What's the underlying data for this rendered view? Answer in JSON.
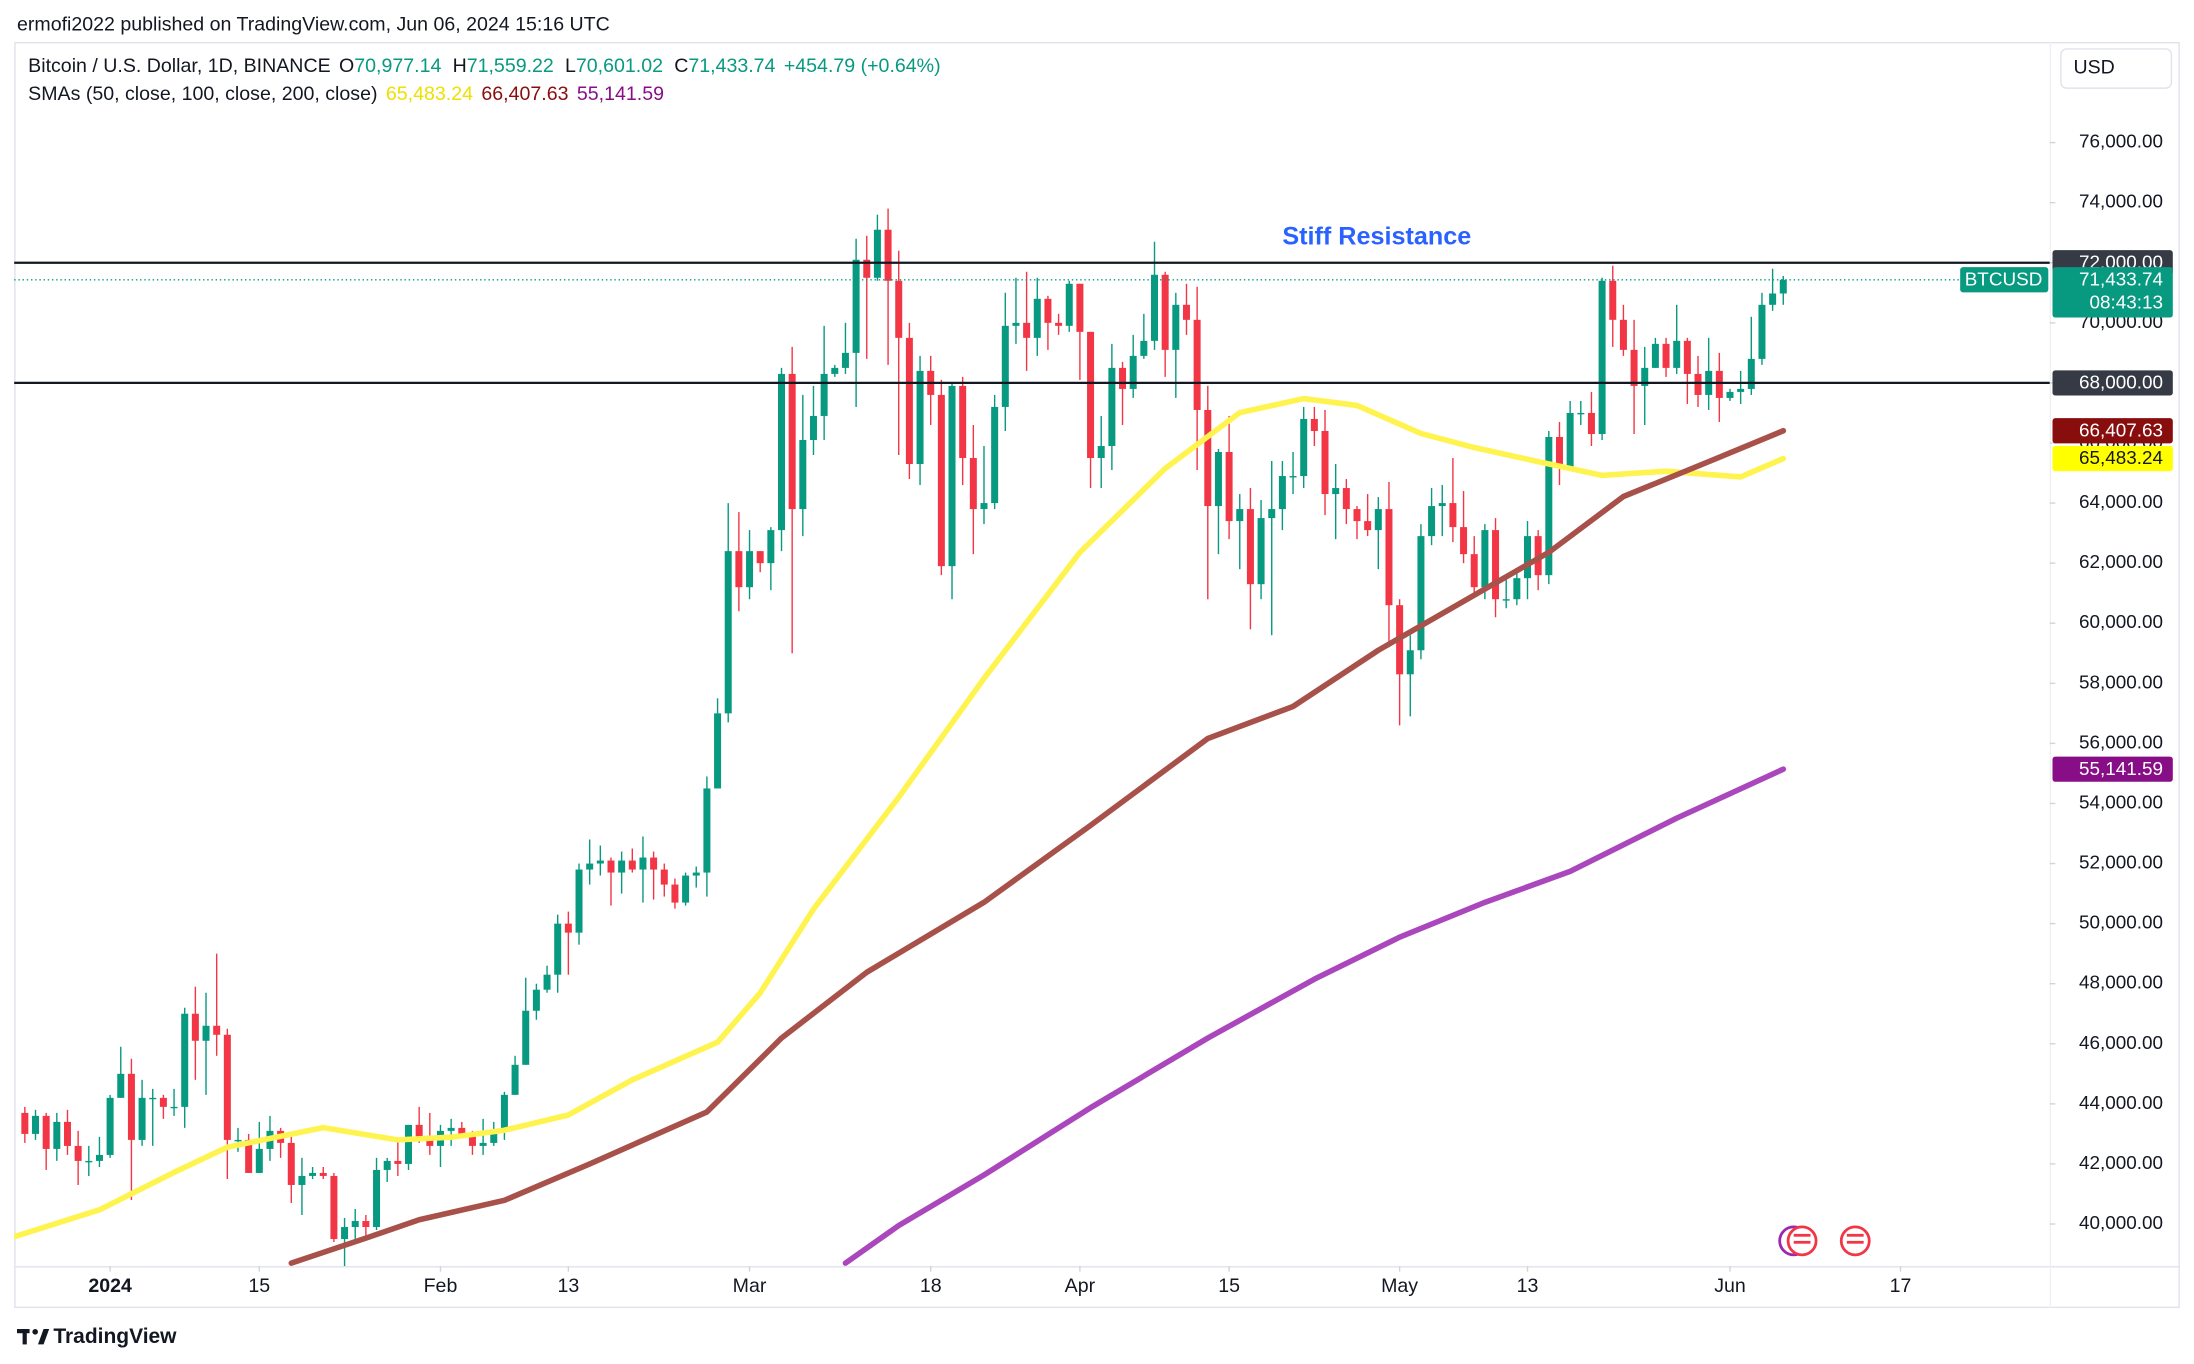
{
  "publisher": "ermofi2022 published on TradingView.com, Jun 06, 2024 15:16 UTC",
  "currency": "USD",
  "footer": "TradingView",
  "chart_data": {
    "type": "candlestick",
    "symbol": "Bitcoin / U.S. Dollar, 1D, BINANCE",
    "ohlc_legend": [
      {
        "key": "O",
        "value": "70,977.14"
      },
      {
        "key": "H",
        "value": "71,559.22"
      },
      {
        "key": "L",
        "value": "70,601.02"
      },
      {
        "key": "C",
        "value": "71,433.74"
      }
    ],
    "change": "+454.79 (+0.64%)",
    "sma_legend": "SMAs (50, close, 100, close, 200, close)",
    "annotation": "Stiff Resistance",
    "up_color": "#089981",
    "down_color": "#f23645",
    "x": [
      "2023-12-24",
      "2023-12-25",
      "2023-12-26",
      "2023-12-27",
      "2023-12-28",
      "2023-12-29",
      "2023-12-30",
      "2023-12-31",
      "2024-01-01",
      "2024-01-02",
      "2024-01-03",
      "2024-01-04",
      "2024-01-05",
      "2024-01-06",
      "2024-01-07",
      "2024-01-08",
      "2024-01-09",
      "2024-01-10",
      "2024-01-11",
      "2024-01-12",
      "2024-01-13",
      "2024-01-14",
      "2024-01-15",
      "2024-01-16",
      "2024-01-17",
      "2024-01-18",
      "2024-01-19",
      "2024-01-20",
      "2024-01-21",
      "2024-01-22",
      "2024-01-23",
      "2024-01-24",
      "2024-01-25",
      "2024-01-26",
      "2024-01-27",
      "2024-01-28",
      "2024-01-29",
      "2024-01-30",
      "2024-01-31",
      "2024-02-01",
      "2024-02-02",
      "2024-02-03",
      "2024-02-04",
      "2024-02-05",
      "2024-02-06",
      "2024-02-07",
      "2024-02-08",
      "2024-02-09",
      "2024-02-10",
      "2024-02-11",
      "2024-02-12",
      "2024-02-13",
      "2024-02-14",
      "2024-02-15",
      "2024-02-16",
      "2024-02-17",
      "2024-02-18",
      "2024-02-19",
      "2024-02-20",
      "2024-02-21",
      "2024-02-22",
      "2024-02-23",
      "2024-02-24",
      "2024-02-25",
      "2024-02-26",
      "2024-02-27",
      "2024-02-28",
      "2024-02-29",
      "2024-03-01",
      "2024-03-02",
      "2024-03-03",
      "2024-03-04",
      "2024-03-05",
      "2024-03-06",
      "2024-03-07",
      "2024-03-08",
      "2024-03-09",
      "2024-03-10",
      "2024-03-11",
      "2024-03-12",
      "2024-03-13",
      "2024-03-14",
      "2024-03-15",
      "2024-03-16",
      "2024-03-17",
      "2024-03-18",
      "2024-03-19",
      "2024-03-20",
      "2024-03-21",
      "2024-03-22",
      "2024-03-23",
      "2024-03-24",
      "2024-03-25",
      "2024-03-26",
      "2024-03-27",
      "2024-03-28",
      "2024-03-29",
      "2024-03-30",
      "2024-03-31",
      "2024-04-01",
      "2024-04-02",
      "2024-04-03",
      "2024-04-04",
      "2024-04-05",
      "2024-04-06",
      "2024-04-07",
      "2024-04-08",
      "2024-04-09",
      "2024-04-10",
      "2024-04-11",
      "2024-04-12",
      "2024-04-13",
      "2024-04-14",
      "2024-04-15",
      "2024-04-16",
      "2024-04-17",
      "2024-04-18",
      "2024-04-19",
      "2024-04-20",
      "2024-04-21",
      "2024-04-22",
      "2024-04-23",
      "2024-04-24",
      "2024-04-25",
      "2024-04-26",
      "2024-04-27",
      "2024-04-28",
      "2024-04-29",
      "2024-04-30",
      "2024-05-01",
      "2024-05-02",
      "2024-05-03",
      "2024-05-04",
      "2024-05-05",
      "2024-05-06",
      "2024-05-07",
      "2024-05-08",
      "2024-05-09",
      "2024-05-10",
      "2024-05-11",
      "2024-05-12",
      "2024-05-13",
      "2024-05-14",
      "2024-05-15",
      "2024-05-16",
      "2024-05-17",
      "2024-05-18",
      "2024-05-19",
      "2024-05-20",
      "2024-05-21",
      "2024-05-22",
      "2024-05-23",
      "2024-05-24",
      "2024-05-25",
      "2024-05-26",
      "2024-05-27",
      "2024-05-28",
      "2024-05-29",
      "2024-05-30",
      "2024-05-31",
      "2024-06-01",
      "2024-06-02",
      "2024-06-03",
      "2024-06-04",
      "2024-06-05",
      "2024-06-06"
    ],
    "open": [
      43700,
      43000,
      43600,
      42500,
      43400,
      42600,
      42100,
      42100,
      42300,
      44200,
      45000,
      42800,
      44200,
      44200,
      43900,
      43900,
      47000,
      46100,
      46600,
      46300,
      42800,
      42800,
      41700,
      42500,
      43100,
      42700,
      41300,
      41600,
      41700,
      41600,
      39500,
      39900,
      40100,
      39900,
      41800,
      42100,
      42000,
      43300,
      42900,
      42600,
      43100,
      43200,
      43000,
      42600,
      42700,
      43100,
      44300,
      45300,
      47100,
      47800,
      48300,
      50000,
      49700,
      51800,
      52000,
      52100,
      51700,
      52100,
      51800,
      52200,
      51800,
      51300,
      50700,
      51600,
      51700,
      54500,
      57000,
      62400,
      61200,
      62400,
      62000,
      63100,
      68300,
      63800,
      66100,
      66900,
      68300,
      68500,
      69000,
      72100,
      71500,
      73100,
      71400,
      69500,
      65300,
      68400,
      67600,
      61900,
      67900,
      65500,
      63800,
      64000,
      67200,
      69900,
      70000,
      69500,
      70800,
      70000,
      69900,
      71300,
      69700,
      65500,
      65900,
      68500,
      67800,
      68900,
      69400,
      71600,
      69100,
      70600,
      70100,
      67100,
      63900,
      65700,
      63400,
      63800,
      61300,
      63500,
      63800,
      64900,
      64900,
      66800,
      66400,
      64300,
      64500,
      63800,
      63400,
      63100,
      63800,
      60600,
      58300,
      59100,
      62900,
      63900,
      64000,
      63200,
      62300,
      61200,
      63100,
      60800,
      60800,
      61500,
      62900,
      61600,
      66200,
      65200,
      67000,
      67000,
      66300,
      71400,
      70100,
      69100,
      67900,
      68500,
      69300,
      68500,
      69400,
      68300,
      67600,
      68400,
      67500,
      67700,
      67800,
      68800,
      70600,
      70977.14
    ],
    "high": [
      43900,
      43800,
      43700,
      43700,
      43800,
      43100,
      42600,
      42900,
      44300,
      45900,
      45500,
      44800,
      44500,
      44300,
      44500,
      47200,
      47900,
      47700,
      49000,
      46500,
      43200,
      43000,
      43400,
      43600,
      43200,
      42900,
      42200,
      41900,
      41900,
      41700,
      40200,
      40500,
      40300,
      42200,
      42200,
      42800,
      43300,
      43900,
      43700,
      43300,
      43500,
      43400,
      43100,
      43500,
      43400,
      44400,
      45600,
      48200,
      48000,
      48600,
      50300,
      50400,
      52000,
      52800,
      52600,
      52200,
      52400,
      52500,
      52900,
      52400,
      52000,
      51500,
      51700,
      51900,
      54900,
      57500,
      64000,
      63700,
      63100,
      62400,
      63200,
      68500,
      69200,
      67600,
      67900,
      69900,
      68600,
      70000,
      72800,
      72900,
      73600,
      73800,
      72400,
      70000,
      68900,
      68900,
      68100,
      68000,
      68200,
      66600,
      65900,
      67600,
      71000,
      71500,
      71700,
      71500,
      70900,
      70300,
      71400,
      71300,
      69700,
      66900,
      69300,
      68700,
      69600,
      70300,
      72700,
      71700,
      71000,
      71300,
      71200,
      67900,
      65800,
      66900,
      64300,
      64500,
      64100,
      65400,
      65400,
      65700,
      67200,
      67200,
      67100,
      65300,
      64800,
      63900,
      64300,
      64200,
      64700,
      60800,
      59600,
      63300,
      64500,
      64600,
      65500,
      64400,
      62900,
      63300,
      63500,
      61500,
      61800,
      63400,
      63100,
      66400,
      66700,
      67400,
      67400,
      67700,
      71500,
      71900,
      70600,
      70100,
      69200,
      69500,
      69500,
      70600,
      69500,
      68900,
      69500,
      69000,
      67800,
      68400,
      70200,
      71000,
      71800,
      71559.22
    ],
    "low": [
      42700,
      42800,
      41800,
      42100,
      42300,
      41300,
      41600,
      41900,
      42200,
      44200,
      40800,
      42600,
      42600,
      43500,
      43600,
      43200,
      44800,
      44300,
      45600,
      41500,
      42400,
      41700,
      41700,
      42100,
      42200,
      40700,
      40300,
      41500,
      41500,
      39400,
      38500,
      39500,
      39500,
      39800,
      41400,
      41600,
      41800,
      42700,
      42300,
      41900,
      42600,
      42900,
      42300,
      42300,
      42600,
      42800,
      44300,
      45300,
      46800,
      47700,
      47700,
      48300,
      49300,
      51300,
      51600,
      50600,
      51000,
      51700,
      50700,
      50800,
      50900,
      50500,
      50600,
      51200,
      50900,
      54500,
      56700,
      60400,
      60800,
      61700,
      61100,
      62400,
      59000,
      62900,
      65600,
      66100,
      68200,
      68300,
      67200,
      68800,
      71400,
      68600,
      65600,
      64800,
      64600,
      66600,
      61600,
      60800,
      64600,
      62300,
      63300,
      63800,
      66400,
      69300,
      68400,
      68900,
      69100,
      69600,
      69700,
      68100,
      64500,
      64500,
      65100,
      66600,
      67500,
      68800,
      69100,
      68200,
      67500,
      69600,
      65100,
      60800,
      62300,
      62800,
      61800,
      59800,
      60800,
      59600,
      63100,
      64300,
      64500,
      65900,
      63600,
      62800,
      63300,
      62800,
      62900,
      61800,
      59200,
      56600,
      56900,
      58800,
      62600,
      62900,
      62700,
      62000,
      60900,
      60800,
      60200,
      60500,
      60600,
      60800,
      61100,
      61300,
      64600,
      65100,
      66600,
      65900,
      66100,
      69200,
      68900,
      66300,
      66600,
      68500,
      68200,
      68300,
      67300,
      67200,
      67100,
      66700,
      67400,
      67300,
      67600,
      68600,
      70400,
      70601.02
    ],
    "close": [
      43000,
      43600,
      42500,
      43400,
      42600,
      42100,
      42100,
      42300,
      44200,
      45000,
      42800,
      44200,
      44200,
      43900,
      43900,
      47000,
      46100,
      46600,
      46300,
      42800,
      42800,
      41700,
      42500,
      43100,
      42700,
      41300,
      41600,
      41700,
      41600,
      39500,
      39900,
      40100,
      39900,
      41800,
      42100,
      42000,
      43300,
      42900,
      42600,
      43100,
      43200,
      43000,
      42600,
      42700,
      43100,
      44300,
      45300,
      47100,
      47800,
      48300,
      50000,
      49700,
      51800,
      52000,
      52100,
      51700,
      52100,
      51800,
      52200,
      51800,
      51300,
      50700,
      51600,
      51700,
      54500,
      57000,
      62400,
      61200,
      62400,
      62000,
      63100,
      68300,
      63800,
      66100,
      66900,
      68300,
      68500,
      69000,
      72100,
      71500,
      73100,
      71400,
      69500,
      65300,
      68400,
      67600,
      61900,
      67900,
      65500,
      63800,
      64000,
      67200,
      69900,
      70000,
      69500,
      70800,
      70000,
      69900,
      71300,
      69700,
      65500,
      65900,
      68500,
      67800,
      68900,
      69400,
      71600,
      69100,
      70600,
      70100,
      67100,
      63900,
      65700,
      63400,
      63800,
      61300,
      63500,
      63800,
      64900,
      64900,
      66800,
      66400,
      64300,
      64500,
      63800,
      63400,
      63100,
      63800,
      60600,
      58300,
      59100,
      62900,
      63900,
      64000,
      63200,
      62300,
      61200,
      63100,
      60800,
      60800,
      61500,
      62900,
      61600,
      66200,
      65200,
      67000,
      67000,
      66300,
      71400,
      70100,
      69100,
      67900,
      68500,
      69300,
      68500,
      69400,
      68300,
      67600,
      68400,
      67500,
      67700,
      67800,
      68800,
      70600,
      70977.14,
      71433.74
    ],
    "last_price": {
      "symbol": "BTCUSD",
      "label": "71,433.74",
      "countdown": "08:43:13"
    },
    "series": [
      {
        "color": "#fff44f",
        "label_color": "#ffff00",
        "last_label": "65,483.24",
        "legend_color": "#eee000",
        "x": [
          "2023-12-23",
          "2023-12-31",
          "2024-01-07",
          "2024-01-12",
          "2024-01-21",
          "2024-01-28",
          "2024-02-02",
          "2024-02-07",
          "2024-02-13",
          "2024-02-19",
          "2024-02-27",
          "2024-03-02",
          "2024-03-07",
          "2024-03-15",
          "2024-03-23",
          "2024-04-01",
          "2024-04-09",
          "2024-04-16",
          "2024-04-22",
          "2024-04-27",
          "2024-05-03",
          "2024-05-08",
          "2024-05-14",
          "2024-05-20",
          "2024-05-26",
          "2024-06-02",
          "2024-06-06"
        ],
        "values": [
          39580,
          40470,
          41720,
          42560,
          43210,
          42800,
          42890,
          43120,
          43630,
          44800,
          46050,
          47690,
          50480,
          54210,
          58160,
          62360,
          65150,
          67010,
          67480,
          67250,
          66320,
          65850,
          65380,
          64920,
          65060,
          64870,
          65483.24
        ]
      },
      {
        "color": "#a8514a",
        "label_color": "#880e0e",
        "last_label": "66,407.63",
        "legend_color": "#880e0e",
        "x": [
          "2024-01-18",
          "2024-01-25",
          "2024-01-30",
          "2024-02-07",
          "2024-02-15",
          "2024-02-26",
          "2024-03-04",
          "2024-03-12",
          "2024-03-23",
          "2024-04-02",
          "2024-04-13",
          "2024-04-21",
          "2024-04-29",
          "2024-05-07",
          "2024-05-15",
          "2024-05-22",
          "2024-05-30",
          "2024-06-06"
        ],
        "values": [
          38700,
          39530,
          40140,
          40790,
          42000,
          43730,
          46190,
          48380,
          50710,
          53270,
          56160,
          57230,
          59100,
          60730,
          62360,
          64220,
          65380,
          66407.63
        ]
      },
      {
        "color": "#ab47bc",
        "label_color": "#880e88",
        "last_label": "55,141.59",
        "legend_color": "#880e88",
        "x": [
          "2024-03-10",
          "2024-03-15",
          "2024-03-23",
          "2024-04-02",
          "2024-04-13",
          "2024-04-23",
          "2024-05-01",
          "2024-05-09",
          "2024-05-17",
          "2024-05-27",
          "2024-06-06"
        ],
        "values": [
          38700,
          39950,
          41630,
          43870,
          46190,
          48150,
          49550,
          50710,
          51740,
          53510,
          55141.59
        ]
      }
    ],
    "hlines": [
      {
        "value": 72000,
        "label": "72,000.00"
      },
      {
        "value": 68000,
        "label": "68,000.00"
      }
    ],
    "xlim": [
      "2023-12-23",
      "2024-07-01"
    ],
    "xticks": [
      {
        "value": "2024-01-01",
        "label": "2024"
      },
      {
        "value": "2024-01-15",
        "label": "15"
      },
      {
        "value": "2024-02-01",
        "label": "Feb"
      },
      {
        "value": "2024-02-13",
        "label": "13"
      },
      {
        "value": "2024-03-01",
        "label": "Mar"
      },
      {
        "value": "2024-03-18",
        "label": "18"
      },
      {
        "value": "2024-04-01",
        "label": "Apr"
      },
      {
        "value": "2024-04-15",
        "label": "15"
      },
      {
        "value": "2024-05-01",
        "label": "May"
      },
      {
        "value": "2024-05-13",
        "label": "13"
      },
      {
        "value": "2024-06-01",
        "label": "Jun"
      },
      {
        "value": "2024-06-17",
        "label": "17"
      }
    ],
    "ylim": [
      38600,
      79350
    ],
    "yticks": [
      {
        "value": 40000,
        "label": "40,000.00"
      },
      {
        "value": 42000,
        "label": "42,000.00"
      },
      {
        "value": 44000,
        "label": "44,000.00"
      },
      {
        "value": 46000,
        "label": "46,000.00"
      },
      {
        "value": 48000,
        "label": "48,000.00"
      },
      {
        "value": 50000,
        "label": "50,000.00"
      },
      {
        "value": 52000,
        "label": "52,000.00"
      },
      {
        "value": 54000,
        "label": "54,000.00"
      },
      {
        "value": 56000,
        "label": "56,000.00"
      },
      {
        "value": 58000,
        "label": "58,000.00"
      },
      {
        "value": 60000,
        "label": "60,000.00"
      },
      {
        "value": 62000,
        "label": "62,000.00"
      },
      {
        "value": 64000,
        "label": "64,000.00"
      },
      {
        "value": 66000,
        "label": "66,000.00"
      },
      {
        "value": 68000,
        "label": "68,000.00"
      },
      {
        "value": 70000,
        "label": "70,000.00"
      },
      {
        "value": 72000,
        "label": "72,000.00"
      },
      {
        "value": 74000,
        "label": "74,000.00"
      },
      {
        "value": 76000,
        "label": "76,000.00"
      }
    ],
    "grid": false
  }
}
